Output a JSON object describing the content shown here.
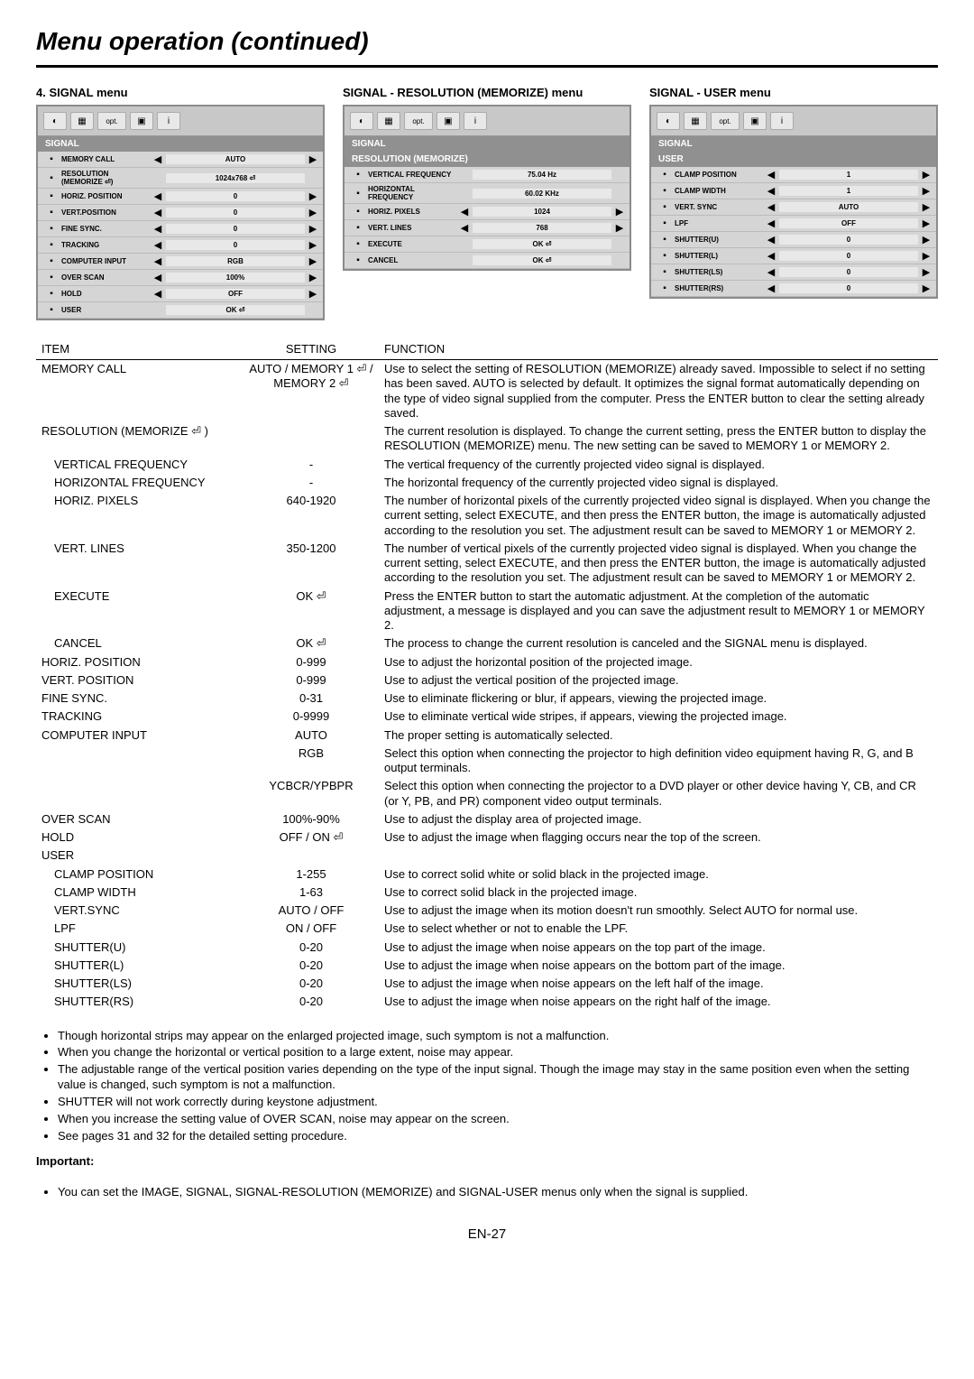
{
  "page_title": "Menu operation (continued)",
  "page_number": "EN-27",
  "menus": {
    "signal": {
      "title": "4. SIGNAL menu",
      "header": "SIGNAL",
      "rows": [
        {
          "label": "MEMORY CALL",
          "value": "AUTO",
          "arrows": true
        },
        {
          "label": "RESOLUTION (MEMORIZE ⏎)",
          "value": "1024x768 ⏎",
          "arrows": false
        },
        {
          "label": "HORIZ. POSITION",
          "value": "0",
          "arrows": true
        },
        {
          "label": "VERT.POSITION",
          "value": "0",
          "arrows": true
        },
        {
          "label": "FINE SYNC.",
          "value": "0",
          "arrows": true
        },
        {
          "label": "TRACKING",
          "value": "0",
          "arrows": true
        },
        {
          "label": "COMPUTER INPUT",
          "value": "RGB",
          "arrows": true
        },
        {
          "label": "OVER SCAN",
          "value": "100%",
          "arrows": true
        },
        {
          "label": "HOLD",
          "value": "OFF",
          "arrows": true
        },
        {
          "label": "USER",
          "value": "OK ⏎",
          "arrows": false
        }
      ]
    },
    "resolution": {
      "title": "SIGNAL - RESOLUTION (MEMORIZE) menu",
      "header": "SIGNAL",
      "subheader": "RESOLUTION (MEMORIZE)",
      "rows": [
        {
          "label": "VERTICAL FREQUENCY",
          "value": "75.04 Hz",
          "arrows": false
        },
        {
          "label": "HORIZONTAL FREQUENCY",
          "value": "60.02 KHz",
          "arrows": false
        },
        {
          "label": "HORIZ. PIXELS",
          "value": "1024",
          "arrows": true
        },
        {
          "label": "VERT. LINES",
          "value": "768",
          "arrows": true
        },
        {
          "label": "EXECUTE",
          "value": "OK ⏎",
          "arrows": false
        },
        {
          "label": "CANCEL",
          "value": "OK ⏎",
          "arrows": false
        }
      ]
    },
    "user": {
      "title": "SIGNAL - USER menu",
      "header": "SIGNAL",
      "subheader": "USER",
      "rows": [
        {
          "label": "CLAMP POSITION",
          "value": "1",
          "arrows": true
        },
        {
          "label": "CLAMP WIDTH",
          "value": "1",
          "arrows": true
        },
        {
          "label": "VERT. SYNC",
          "value": "AUTO",
          "arrows": true
        },
        {
          "label": "LPF",
          "value": "OFF",
          "arrows": true
        },
        {
          "label": "SHUTTER(U)",
          "value": "0",
          "arrows": true
        },
        {
          "label": "SHUTTER(L)",
          "value": "0",
          "arrows": true
        },
        {
          "label": "SHUTTER(LS)",
          "value": "0",
          "arrows": true
        },
        {
          "label": "SHUTTER(RS)",
          "value": "0",
          "arrows": true
        }
      ]
    }
  },
  "table_headers": {
    "item": "ITEM",
    "setting": "SETTING",
    "function": "FUNCTION"
  },
  "table": [
    {
      "item": "MEMORY CALL",
      "setting": "AUTO / MEMORY 1 ⏎ / MEMORY 2 ⏎",
      "function": "Use to select the setting of RESOLUTION (MEMORIZE) already saved. Impossible to select if no setting has been saved. AUTO is selected by default. It optimizes the signal format automatically depending on the type of video signal supplied from the computer. Press the ENTER button to clear the setting already saved."
    },
    {
      "item": "RESOLUTION (MEMORIZE ⏎ )",
      "setting": "",
      "function": "The current resolution is displayed. To change the current setting, press the ENTER button to display the RESOLUTION (MEMORIZE) menu. The new setting can be saved to MEMORY 1 or MEMORY 2."
    },
    {
      "item": "VERTICAL FREQUENCY",
      "indent": true,
      "setting": "-",
      "function": "The vertical frequency of the currently projected video signal is displayed."
    },
    {
      "item": "HORIZONTAL FREQUENCY",
      "indent": true,
      "setting": "-",
      "function": "The horizontal frequency of the currently projected video signal is displayed."
    },
    {
      "item": "HORIZ. PIXELS",
      "indent": true,
      "setting": "640-1920",
      "function": "The number of horizontal pixels of the currently projected video signal is displayed. When you change the current setting, select EXECUTE, and then press the ENTER button, the image is automatically adjusted according to the resolution you set. The adjustment result can be saved to MEMORY 1 or MEMORY 2."
    },
    {
      "item": "VERT. LINES",
      "indent": true,
      "setting": "350-1200",
      "function": "The number of vertical pixels of the currently projected video signal is displayed. When you change the current setting, select EXECUTE, and then press the ENTER button, the image is automatically adjusted according to the resolution you set. The adjustment result can be saved to MEMORY 1 or MEMORY 2."
    },
    {
      "item": "EXECUTE",
      "indent": true,
      "setting": "OK ⏎",
      "function": "Press the ENTER button to start the automatic adjustment. At the completion of the automatic adjustment, a message is displayed and you can save the adjustment result to MEMORY 1 or MEMORY 2."
    },
    {
      "item": "CANCEL",
      "indent": true,
      "setting": "OK ⏎",
      "function": "The process to change the current resolution is canceled and the SIGNAL menu is displayed."
    },
    {
      "item": "HORIZ. POSITION",
      "setting": "0-999",
      "function": "Use to adjust the horizontal position of the projected image."
    },
    {
      "item": "VERT. POSITION",
      "setting": "0-999",
      "function": "Use to adjust the vertical position of the projected image."
    },
    {
      "item": "FINE SYNC.",
      "setting": "0-31",
      "function": "Use to eliminate flickering or blur, if appears, viewing the projected image."
    },
    {
      "item": "TRACKING",
      "setting": "0-9999",
      "function": "Use to eliminate vertical wide stripes, if appears, viewing the projected image."
    },
    {
      "item": "COMPUTER INPUT",
      "setting": "AUTO",
      "function": "The proper setting is automatically selected."
    },
    {
      "item": "",
      "setting": "RGB",
      "function": "Select this option when connecting the projector to high definition video equipment having R, G, and B output terminals."
    },
    {
      "item": "",
      "setting": "YCBCR/YPBPR",
      "function": "Select this option when connecting the projector to a DVD player or other device having Y, CB, and CR (or Y, PB, and PR) component video output terminals."
    },
    {
      "item": "OVER SCAN",
      "setting": "100%-90%",
      "function": "Use to adjust the display area of projected image."
    },
    {
      "item": "HOLD",
      "setting": "OFF / ON ⏎",
      "function": "Use to adjust the image when flagging occurs near the top of the screen."
    },
    {
      "item": "USER",
      "setting": "",
      "function": ""
    },
    {
      "item": "CLAMP POSITION",
      "indent": true,
      "setting": "1-255",
      "function": "Use to correct solid white or solid black in the projected image."
    },
    {
      "item": "CLAMP WIDTH",
      "indent": true,
      "setting": "1-63",
      "function": "Use to correct solid black in the projected image."
    },
    {
      "item": "VERT.SYNC",
      "indent": true,
      "setting": "AUTO / OFF",
      "function": "Use to adjust the image when its motion doesn't run smoothly. Select AUTO for normal use."
    },
    {
      "item": "LPF",
      "indent": true,
      "setting": "ON / OFF",
      "function": "Use to select whether or not to enable the LPF."
    },
    {
      "item": "SHUTTER(U)",
      "indent": true,
      "setting": "0-20",
      "function": "Use to adjust the image when noise appears on the top part of the image."
    },
    {
      "item": "SHUTTER(L)",
      "indent": true,
      "setting": "0-20",
      "function": "Use to adjust the image when noise appears on the bottom part of the image."
    },
    {
      "item": "SHUTTER(LS)",
      "indent": true,
      "setting": "0-20",
      "function": "Use to adjust the image when noise appears on the left half of the image."
    },
    {
      "item": "SHUTTER(RS)",
      "indent": true,
      "setting": "0-20",
      "function": "Use to adjust the image when noise appears on the right half of the image."
    }
  ],
  "notes": [
    "Though horizontal strips may appear on the enlarged projected image, such symptom is not a malfunction.",
    "When you change the horizontal or vertical position to a large extent, noise may appear.",
    "The adjustable range of the vertical position varies depending on the type of the input signal. Though the image may stay in the same position even when the setting value is changed, such symptom is not a malfunction.",
    "SHUTTER will not work correctly during keystone adjustment.",
    "When you increase the setting value of OVER SCAN, noise may appear on the screen.",
    "See pages 31 and 32 for the detailed setting procedure."
  ],
  "important_label": "Important:",
  "important_notes": [
    "You can set the IMAGE, SIGNAL, SIGNAL-RESOLUTION (MEMORIZE) and SIGNAL-USER menus only when the signal is supplied."
  ]
}
